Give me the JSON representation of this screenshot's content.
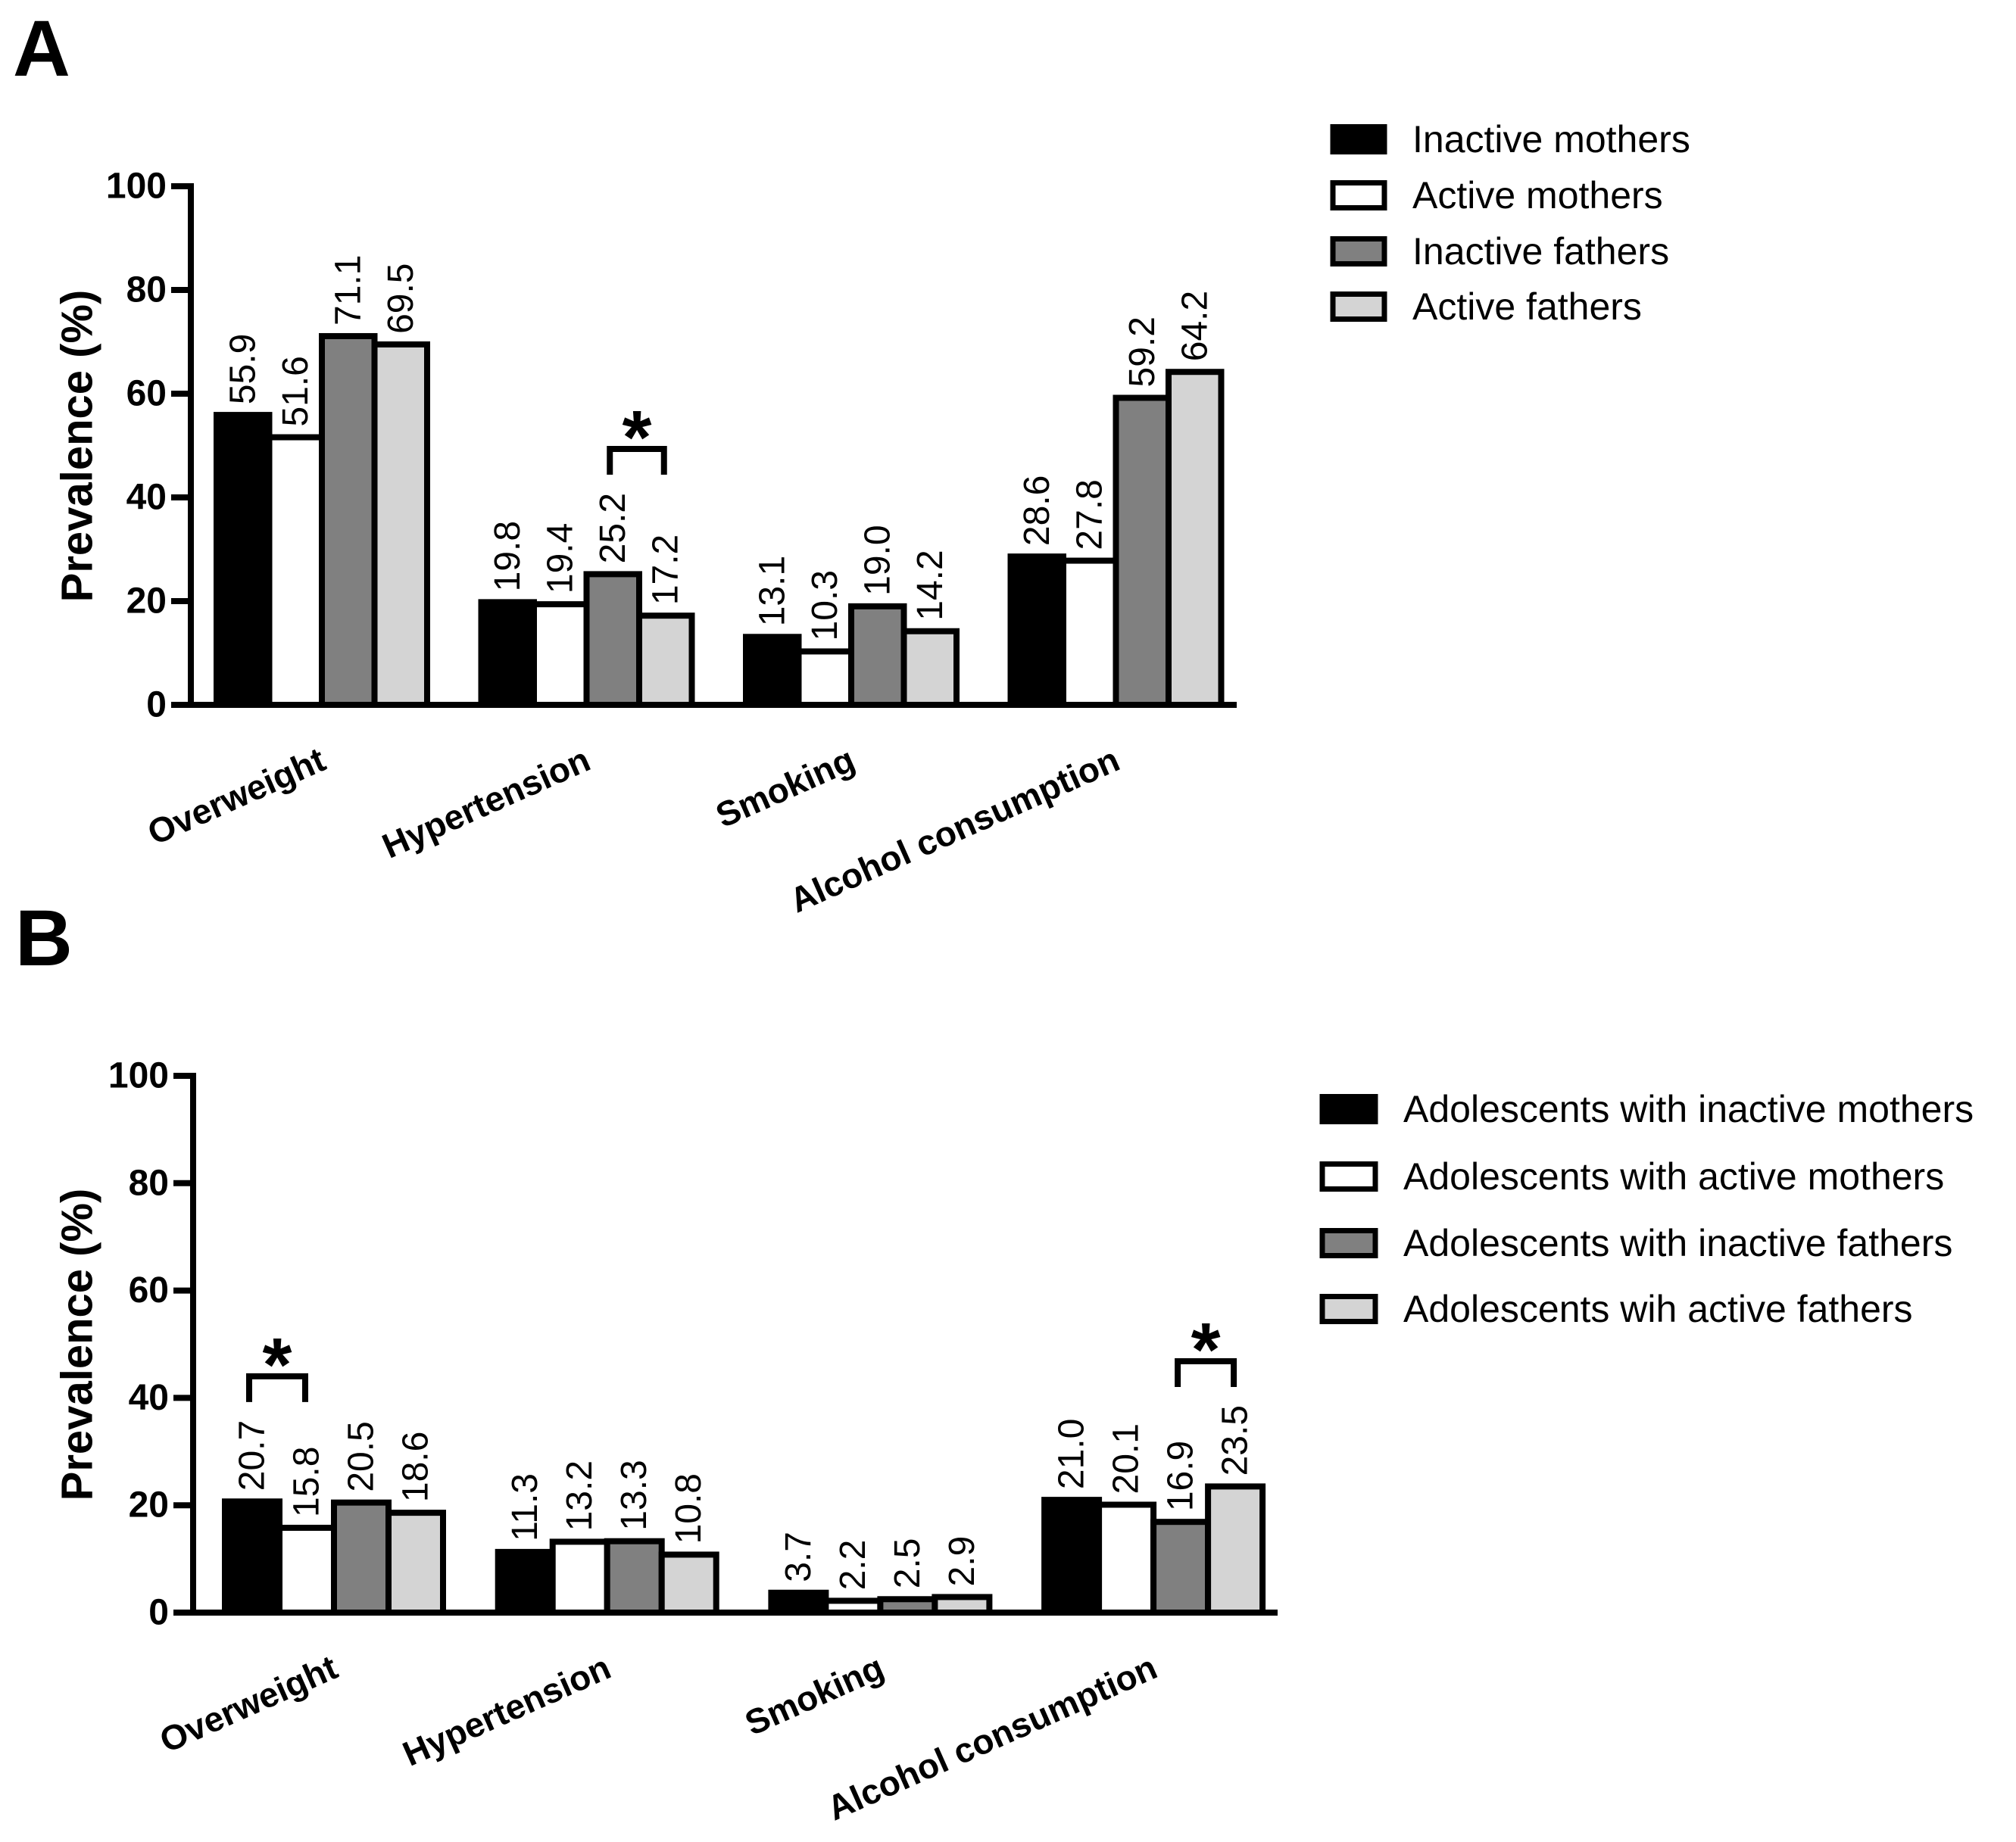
{
  "chart_data": [
    {
      "panel_label": "A",
      "type": "bar",
      "ylabel": "Prevalence (%)",
      "ylim": [
        0,
        100
      ],
      "yticks": [
        0,
        20,
        40,
        60,
        80,
        100
      ],
      "categories": [
        "Overweight",
        "Hypertension",
        "Smoking",
        "Alcohol consumption"
      ],
      "series": [
        {
          "name": "Inactive mothers",
          "color": "#000000",
          "values": [
            55.9,
            19.8,
            13.1,
            28.6
          ],
          "value_labels": [
            "55.9",
            "19.8",
            "13.1",
            "28.6"
          ]
        },
        {
          "name": "Active mothers",
          "color": "#ffffff",
          "values": [
            51.6,
            19.4,
            10.3,
            27.8
          ],
          "value_labels": [
            "51.6",
            "19.4",
            "10.3",
            "27.8"
          ]
        },
        {
          "name": "Inactive fathers",
          "color": "#808080",
          "values": [
            71.1,
            25.2,
            19.0,
            59.2
          ],
          "value_labels": [
            "71.1",
            "25.2",
            "19.0",
            "59.2"
          ]
        },
        {
          "name": "Active fathers",
          "color": "#d4d4d4",
          "values": [
            69.5,
            17.2,
            14.2,
            64.2
          ],
          "value_labels": [
            "69.5",
            "17.2",
            "14.2",
            "64.2"
          ]
        }
      ],
      "significance": [
        {
          "category_index": 1,
          "series": [
            2,
            3
          ],
          "label": "*"
        }
      ]
    },
    {
      "panel_label": "B",
      "type": "bar",
      "ylabel": "Prevalence (%)",
      "ylim": [
        0,
        100
      ],
      "yticks": [
        0,
        20,
        40,
        60,
        80,
        100
      ],
      "categories": [
        "Overweight",
        "Hypertension",
        "Smoking",
        "Alcohol consumption"
      ],
      "series": [
        {
          "name": "Adolescents with inactive mothers",
          "color": "#000000",
          "values": [
            20.7,
            11.3,
            3.7,
            21.0
          ],
          "value_labels": [
            "20.7",
            "11.3",
            "3.7",
            "21.0"
          ]
        },
        {
          "name": "Adolescents with active mothers",
          "color": "#ffffff",
          "values": [
            15.8,
            13.2,
            2.2,
            20.1
          ],
          "value_labels": [
            "15.8",
            "13.2",
            "2.2",
            "20.1"
          ]
        },
        {
          "name": "Adolescents with inactive fathers",
          "color": "#808080",
          "values": [
            20.5,
            13.3,
            2.5,
            16.9
          ],
          "value_labels": [
            "20.5",
            "13.3",
            "2.5",
            "16.9"
          ]
        },
        {
          "name": "Adolescents wih active fathers",
          "color": "#d4d4d4",
          "values": [
            18.6,
            10.8,
            2.9,
            23.5
          ],
          "value_labels": [
            "18.6",
            "10.8",
            "2.9",
            "23.5"
          ]
        }
      ],
      "significance": [
        {
          "category_index": 0,
          "series": [
            0,
            1
          ],
          "label": "*"
        },
        {
          "category_index": 3,
          "series": [
            2,
            3
          ],
          "label": "*"
        }
      ]
    }
  ]
}
